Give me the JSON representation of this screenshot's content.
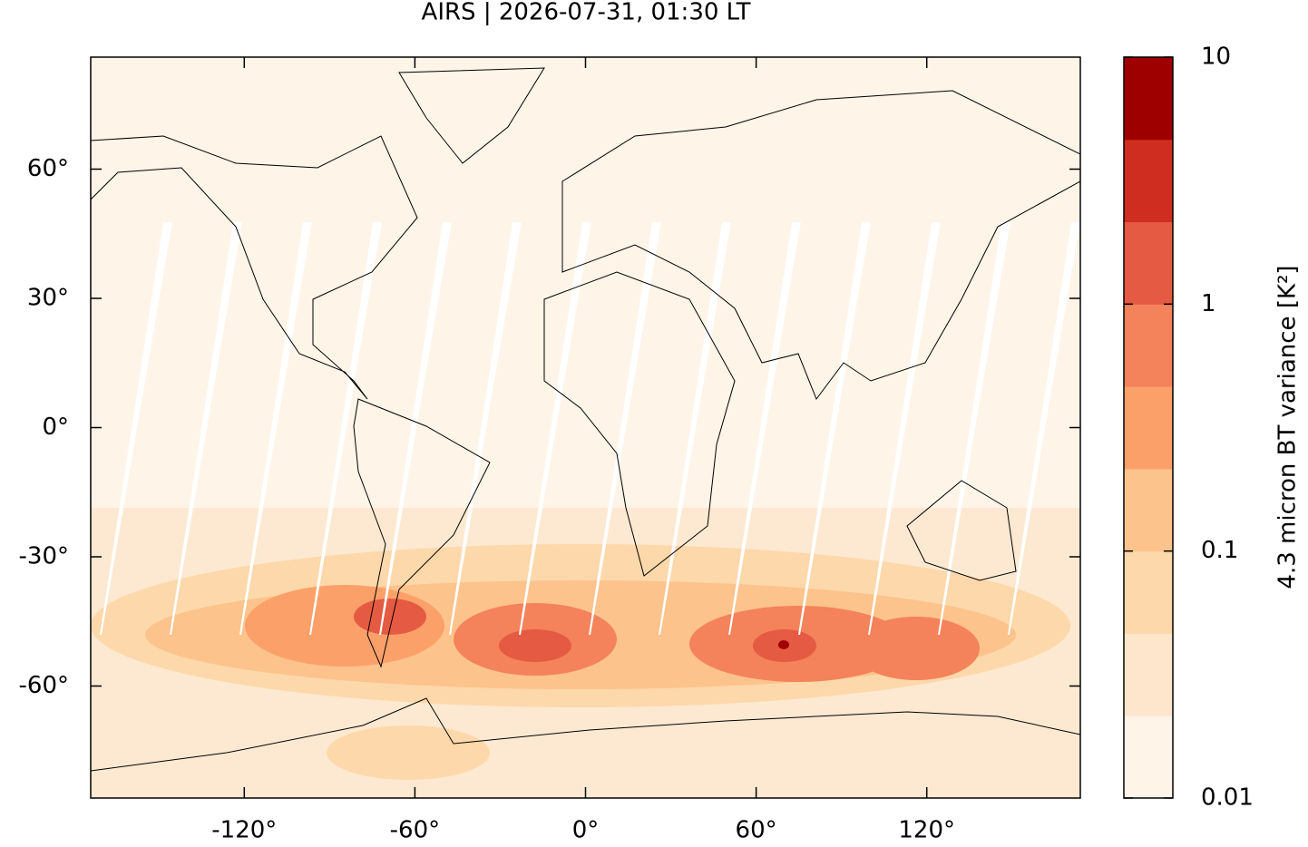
{
  "chart_data": {
    "type": "map",
    "title": "AIRS | 2026-07-31, 01:30 LT",
    "xlim": [
      -174,
      174
    ],
    "ylim": [
      -86,
      86
    ],
    "xticks": [
      {
        "value": -120,
        "label": "-120°"
      },
      {
        "value": -60,
        "label": "-60°"
      },
      {
        "value": 0,
        "label": "0°"
      },
      {
        "value": 60,
        "label": "60°"
      },
      {
        "value": 120,
        "label": "120°"
      }
    ],
    "yticks": [
      {
        "value": -60,
        "label": "-60°"
      },
      {
        "value": -30,
        "label": "-30°"
      },
      {
        "value": 0,
        "label": "0°"
      },
      {
        "value": 30,
        "label": "30°"
      },
      {
        "value": 60,
        "label": "60°"
      }
    ],
    "colorbar": {
      "label": "4.3 micron BT variance [K²]",
      "log": true,
      "lim": [
        0.01,
        10
      ],
      "ticks": [
        0.01,
        0.1,
        1,
        10
      ],
      "colors": [
        "#fef4e8",
        "#fde6cb",
        "#fdd8aa",
        "#fdc38c",
        "#fca06a",
        "#f4825a",
        "#e55a42",
        "#cf2d1f",
        "#9e0000"
      ]
    }
  }
}
